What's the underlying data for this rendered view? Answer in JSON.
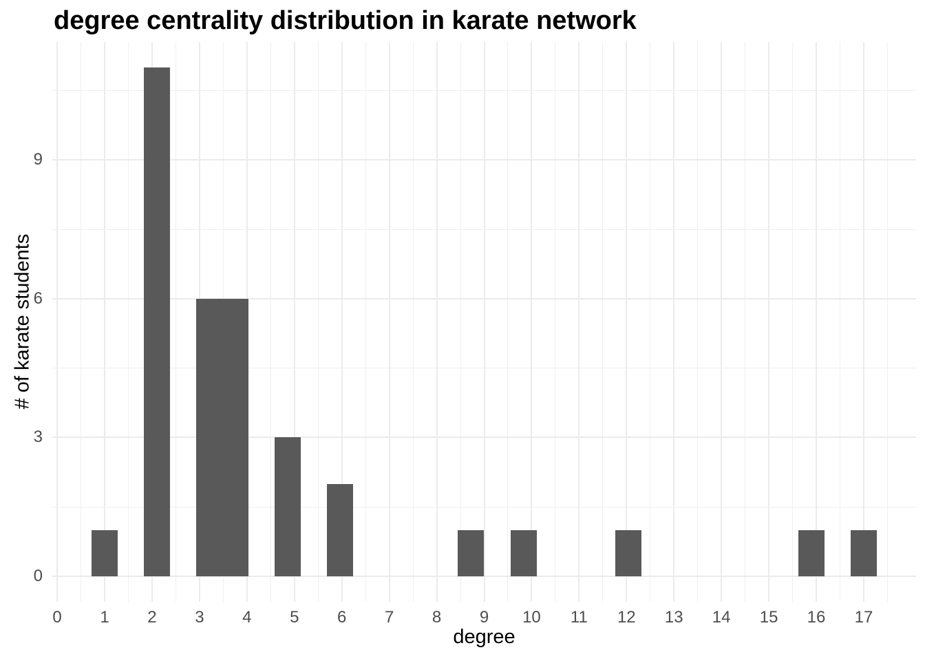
{
  "chart_data": {
    "type": "bar",
    "subtype": "histogram",
    "title": "degree centrality distribution in karate network",
    "xlabel": "degree",
    "ylabel": "# of karate students",
    "bar_color": "#595959",
    "grid_color": "#EBEBEB",
    "tick_label_color": "#4D4D4D",
    "axis_title_color": "#000000",
    "background_color": "#FFFFFF",
    "grid": "major-and-minor",
    "legend_position": "none",
    "xlim": [
      -0.103,
      18.103
    ],
    "ylim": [
      -0.55,
      11.55
    ],
    "x_major_ticks": [
      0,
      1,
      2,
      3,
      4,
      5,
      6,
      7,
      8,
      9,
      10,
      11,
      12,
      13,
      14,
      15,
      16,
      17
    ],
    "x_minor_ticks": [
      0.5,
      1.5,
      2.5,
      3.5,
      4.5,
      5.5,
      6.5,
      7.5,
      8.5,
      9.5,
      10.5,
      11.5,
      12.5,
      13.5,
      14.5,
      15.5,
      16.5,
      17.5
    ],
    "y_major_ticks": [
      0,
      3,
      6,
      9
    ],
    "y_minor_ticks": [
      1.5,
      4.5,
      7.5,
      10.5
    ],
    "binwidth": 0.5517,
    "total_nodes": 34,
    "degree_counts": {
      "1": 1,
      "2": 11,
      "3": 6,
      "4": 6,
      "5": 3,
      "6": 2,
      "9": 1,
      "10": 1,
      "12": 1,
      "16": 1,
      "17": 1
    },
    "bins": [
      {
        "x0": 0.7241,
        "x1": 1.2759,
        "degree": 1,
        "count": 1
      },
      {
        "x0": 1.8276,
        "x1": 2.3793,
        "degree": 2,
        "count": 11
      },
      {
        "x0": 2.931,
        "x1": 3.4828,
        "degree": 3,
        "count": 6
      },
      {
        "x0": 3.4828,
        "x1": 4.0345,
        "degree": 4,
        "count": 6
      },
      {
        "x0": 4.5862,
        "x1": 5.1379,
        "degree": 5,
        "count": 3
      },
      {
        "x0": 5.6897,
        "x1": 6.2414,
        "degree": 6,
        "count": 2
      },
      {
        "x0": 8.4483,
        "x1": 9.0,
        "degree": 9,
        "count": 1
      },
      {
        "x0": 9.5517,
        "x1": 10.1034,
        "degree": 10,
        "count": 1
      },
      {
        "x0": 11.7586,
        "x1": 12.3103,
        "degree": 12,
        "count": 1
      },
      {
        "x0": 15.6207,
        "x1": 16.1724,
        "degree": 16,
        "count": 1
      },
      {
        "x0": 16.7241,
        "x1": 17.2759,
        "degree": 17,
        "count": 1
      }
    ]
  }
}
